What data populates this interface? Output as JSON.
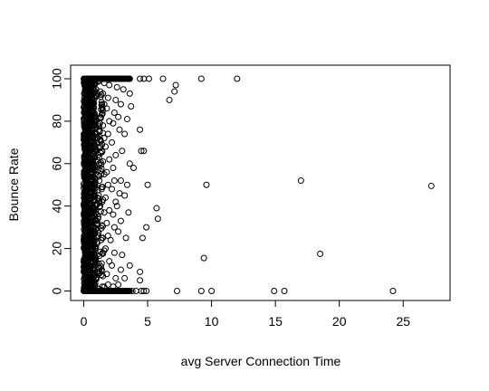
{
  "chart_data": {
    "type": "scatter",
    "title": "",
    "xlabel": "avg Server Connection Time",
    "ylabel": "Bounce Rate",
    "xlim": [
      0,
      27.5
    ],
    "ylim": [
      0,
      100
    ],
    "xticks": [
      "0",
      "5",
      "10",
      "15",
      "20",
      "25"
    ],
    "yticks": [
      "0",
      "20",
      "40",
      "60",
      "80",
      "100"
    ],
    "grid": false,
    "legend": "none",
    "marker": "open-circle",
    "marker_color": "#000000",
    "series": [
      {
        "points": [
          [
            0.2,
            100
          ],
          [
            0.5,
            100
          ],
          [
            0.8,
            100
          ],
          [
            1.1,
            100
          ],
          [
            1.4,
            100
          ],
          [
            1.7,
            100
          ],
          [
            2.0,
            100
          ],
          [
            2.3,
            100
          ],
          [
            2.6,
            100
          ],
          [
            2.9,
            100
          ],
          [
            3.2,
            100
          ],
          [
            3.5,
            100
          ],
          [
            4.4,
            100
          ],
          [
            4.7,
            100
          ],
          [
            5.1,
            100
          ],
          [
            6.2,
            100
          ],
          [
            9.2,
            100
          ],
          [
            12.0,
            100
          ],
          [
            7.2,
            97
          ],
          [
            7.1,
            94
          ],
          [
            6.7,
            90
          ],
          [
            0.2,
            0
          ],
          [
            0.5,
            0
          ],
          [
            0.8,
            0
          ],
          [
            1.1,
            0
          ],
          [
            1.4,
            0
          ],
          [
            1.7,
            0
          ],
          [
            2.0,
            0
          ],
          [
            2.3,
            0
          ],
          [
            2.6,
            0
          ],
          [
            2.9,
            0
          ],
          [
            3.2,
            0
          ],
          [
            3.5,
            0
          ],
          [
            3.8,
            0
          ],
          [
            4.1,
            0
          ],
          [
            4.5,
            0
          ],
          [
            4.7,
            0
          ],
          [
            4.9,
            0
          ],
          [
            7.3,
            0
          ],
          [
            9.2,
            0
          ],
          [
            10.0,
            0
          ],
          [
            14.9,
            0
          ],
          [
            15.7,
            0
          ],
          [
            24.2,
            0
          ],
          [
            27.2,
            49.5
          ],
          [
            17.0,
            52
          ],
          [
            9.6,
            50
          ],
          [
            9.4,
            15.5
          ],
          [
            18.5,
            17.5
          ],
          [
            5.8,
            34
          ],
          [
            5.7,
            39
          ],
          [
            4.9,
            30
          ],
          [
            4.6,
            25
          ],
          [
            4.7,
            66
          ],
          [
            4.5,
            66
          ],
          [
            4.4,
            76
          ],
          [
            5.0,
            50
          ],
          [
            4.4,
            9
          ],
          [
            4.4,
            5
          ],
          [
            3.6,
            93
          ],
          [
            3.7,
            87
          ],
          [
            3.4,
            81
          ],
          [
            3.2,
            74
          ],
          [
            3.6,
            60
          ],
          [
            3.9,
            58
          ],
          [
            3.4,
            50
          ],
          [
            3.2,
            45
          ],
          [
            3.5,
            37
          ],
          [
            3.3,
            25
          ],
          [
            3.6,
            12
          ],
          [
            3.2,
            6
          ],
          [
            3.1,
            95
          ],
          [
            2.9,
            88
          ],
          [
            2.7,
            82
          ],
          [
            2.8,
            76
          ],
          [
            3.0,
            66
          ],
          [
            2.9,
            52
          ],
          [
            2.8,
            46
          ],
          [
            2.6,
            40
          ],
          [
            2.9,
            33
          ],
          [
            2.7,
            28
          ],
          [
            3.0,
            17
          ],
          [
            2.9,
            10
          ],
          [
            2.7,
            3
          ],
          [
            2.6,
            96
          ],
          [
            2.5,
            90
          ],
          [
            2.4,
            84
          ],
          [
            2.3,
            79
          ],
          [
            2.2,
            70
          ],
          [
            2.5,
            64
          ],
          [
            2.3,
            58
          ],
          [
            2.4,
            52
          ],
          [
            2.2,
            48
          ],
          [
            2.5,
            42
          ],
          [
            2.3,
            36
          ],
          [
            2.4,
            30
          ],
          [
            2.1,
            24
          ],
          [
            2.4,
            18
          ],
          [
            2.2,
            12
          ],
          [
            2.5,
            6
          ],
          [
            2.3,
            2
          ],
          [
            2.0,
            97
          ],
          [
            1.9,
            91
          ],
          [
            1.8,
            86
          ],
          [
            2.0,
            80
          ],
          [
            1.9,
            74
          ],
          [
            1.7,
            68
          ],
          [
            2.0,
            62
          ],
          [
            1.8,
            56
          ],
          [
            1.9,
            50
          ],
          [
            1.7,
            44
          ],
          [
            2.0,
            38
          ],
          [
            1.8,
            32
          ],
          [
            1.9,
            26
          ],
          [
            1.7,
            20
          ],
          [
            2.0,
            14
          ],
          [
            1.8,
            8
          ],
          [
            1.9,
            3
          ],
          [
            1.6,
            98
          ],
          [
            1.5,
            93
          ],
          [
            1.6,
            88
          ],
          [
            1.4,
            83
          ],
          [
            1.5,
            78
          ],
          [
            1.6,
            72
          ],
          [
            1.4,
            66
          ],
          [
            1.5,
            61
          ],
          [
            1.6,
            55
          ],
          [
            1.4,
            49
          ],
          [
            1.5,
            43
          ],
          [
            1.6,
            37
          ],
          [
            1.4,
            31
          ],
          [
            1.5,
            25
          ],
          [
            1.6,
            19
          ],
          [
            1.4,
            13
          ],
          [
            1.5,
            7
          ],
          [
            1.6,
            2
          ]
        ]
      }
    ]
  }
}
